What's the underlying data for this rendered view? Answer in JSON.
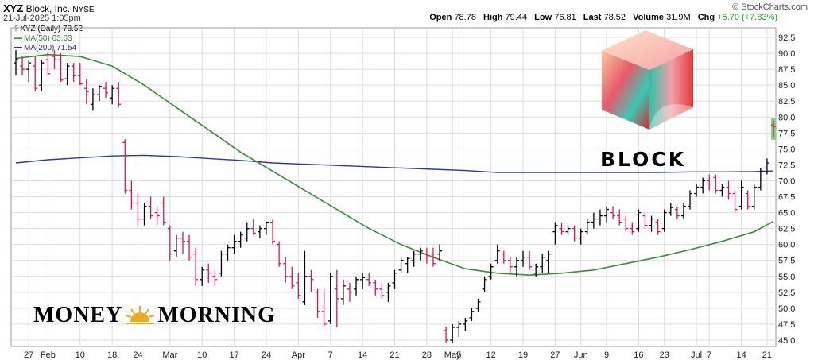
{
  "header": {
    "symbol": "XYZ",
    "company": "Block, Inc.",
    "exchange": "NYSE",
    "date": "21-Jul-2025 1:05pm",
    "open_label": "Open",
    "open": "78.78",
    "high_label": "High",
    "high": "79.44",
    "low_label": "Low",
    "low": "76.81",
    "last_label": "Last",
    "last": "78.52",
    "volume_label": "Volume",
    "volume": "31.9M",
    "chg_label": "Chg",
    "chg": "+5.70 (+7.83%)",
    "source": "© StockCharts.com"
  },
  "legend": {
    "price": "XYZ (Daily) 78.52",
    "ma50": "MA(50) 63.63",
    "ma200": "MA(200) 71.54"
  },
  "logos": {
    "money_morning_left": "MONEY",
    "money_morning_right": "MORNING",
    "block_wordmark": "BLOCK"
  },
  "colors": {
    "up": "#000000",
    "down": "#d4145a",
    "ma50": "#3a8a3a",
    "ma200": "#2b3a99",
    "last_marker": "#7fd37f",
    "grid": "#dddddd"
  },
  "chart_data": {
    "type": "ohlc",
    "title": "XYZ (Daily)",
    "ylim": [
      44,
      94
    ],
    "y_ticks": [
      "45.0",
      "47.5",
      "50.0",
      "52.5",
      "55.0",
      "57.5",
      "60.0",
      "62.5",
      "65.0",
      "67.5",
      "70.0",
      "72.5",
      "75.0",
      "77.5",
      "80.0",
      "82.5",
      "85.0",
      "87.5",
      "90.0",
      "92.5"
    ],
    "x_tick_labels": [
      {
        "i": 2,
        "label": "27"
      },
      {
        "i": 5,
        "label": "Feb"
      },
      {
        "i": 10,
        "label": "10"
      },
      {
        "i": 15,
        "label": "18"
      },
      {
        "i": 19,
        "label": "24"
      },
      {
        "i": 24,
        "label": "Mar"
      },
      {
        "i": 29,
        "label": "10"
      },
      {
        "i": 34,
        "label": "17"
      },
      {
        "i": 39,
        "label": "24"
      },
      {
        "i": 44,
        "label": "Apr"
      },
      {
        "i": 49,
        "label": "7"
      },
      {
        "i": 54,
        "label": "14"
      },
      {
        "i": 59,
        "label": "21"
      },
      {
        "i": 64,
        "label": "28"
      },
      {
        "i": 68,
        "label": "May"
      },
      {
        "i": 69,
        "label": "5"
      },
      {
        "i": 74,
        "label": "12"
      },
      {
        "i": 79,
        "label": "19"
      },
      {
        "i": 84,
        "label": "27"
      },
      {
        "i": 88,
        "label": "Jun"
      },
      {
        "i": 92,
        "label": "9"
      },
      {
        "i": 97,
        "label": "16"
      },
      {
        "i": 101,
        "label": "23"
      },
      {
        "i": 106,
        "label": "Jul"
      },
      {
        "i": 108,
        "label": "7"
      },
      {
        "i": 113,
        "label": "14"
      },
      {
        "i": 117,
        "label": "21"
      }
    ],
    "bars": [
      [
        88.5,
        90.5,
        86.5,
        89.0
      ],
      [
        88.0,
        89.5,
        86.5,
        87.5
      ],
      [
        87.5,
        89.0,
        85.5,
        88.5
      ],
      [
        88.0,
        89.5,
        84.0,
        84.5
      ],
      [
        85.0,
        89.0,
        84.0,
        88.5
      ],
      [
        89.0,
        90.2,
        86.5,
        86.8
      ],
      [
        89.5,
        90.5,
        87.5,
        89.0
      ],
      [
        89.0,
        90.0,
        85.5,
        85.8
      ],
      [
        86.0,
        88.5,
        85.0,
        88.0
      ],
      [
        88.0,
        88.5,
        85.5,
        86.5
      ],
      [
        86.5,
        88.5,
        85.0,
        85.2
      ],
      [
        84.5,
        86.0,
        82.0,
        84.0
      ],
      [
        82.0,
        84.5,
        81.0,
        83.5
      ],
      [
        83.5,
        85.0,
        82.5,
        84.8
      ],
      [
        84.5,
        85.5,
        83.0,
        83.8
      ],
      [
        83.0,
        85.0,
        82.0,
        84.5
      ],
      [
        84.5,
        85.5,
        81.5,
        82.0
      ],
      [
        76.0,
        76.5,
        68.0,
        68.5
      ],
      [
        68.5,
        70.0,
        65.5,
        66.5
      ],
      [
        66.5,
        68.0,
        63.0,
        64.0
      ],
      [
        64.0,
        66.5,
        63.0,
        66.0
      ],
      [
        66.0,
        67.5,
        64.0,
        64.5
      ],
      [
        65.0,
        66.0,
        63.0,
        64.5
      ],
      [
        66.5,
        67.5,
        63.0,
        63.5
      ],
      [
        62.5,
        63.0,
        57.5,
        58.5
      ],
      [
        59.0,
        61.5,
        58.0,
        61.0
      ],
      [
        61.0,
        62.0,
        58.5,
        60.5
      ],
      [
        60.5,
        61.5,
        57.5,
        58.0
      ],
      [
        58.5,
        59.5,
        53.5,
        54.5
      ],
      [
        54.5,
        56.5,
        53.5,
        56.0
      ],
      [
        56.0,
        57.0,
        54.0,
        55.5
      ],
      [
        55.0,
        56.0,
        53.5,
        54.5
      ],
      [
        55.5,
        59.0,
        55.0,
        58.5
      ],
      [
        58.5,
        60.0,
        57.5,
        59.5
      ],
      [
        59.5,
        61.5,
        58.5,
        60.5
      ],
      [
        60.5,
        62.0,
        59.5,
        61.5
      ],
      [
        61.0,
        63.5,
        60.5,
        62.5
      ],
      [
        62.5,
        64.0,
        61.5,
        61.8
      ],
      [
        62.0,
        63.0,
        61.0,
        62.5
      ],
      [
        62.5,
        63.5,
        61.5,
        63.5
      ],
      [
        63.5,
        64.0,
        60.0,
        60.5
      ],
      [
        60.0,
        60.5,
        56.5,
        57.0
      ],
      [
        57.0,
        58.0,
        54.0,
        55.0
      ],
      [
        55.0,
        56.5,
        53.0,
        53.5
      ],
      [
        54.0,
        55.5,
        51.5,
        52.0
      ],
      [
        51.0,
        59.0,
        50.5,
        55.0
      ],
      [
        55.0,
        56.0,
        52.5,
        54.5
      ],
      [
        52.5,
        53.0,
        48.5,
        49.5
      ],
      [
        49.5,
        53.0,
        47.0,
        47.5
      ],
      [
        48.0,
        55.5,
        47.5,
        55.0
      ],
      [
        53.0,
        56.0,
        47.0,
        51.5
      ],
      [
        51.5,
        54.5,
        50.5,
        53.5
      ],
      [
        53.0,
        54.0,
        51.0,
        52.5
      ],
      [
        53.0,
        55.0,
        52.0,
        54.5
      ],
      [
        54.5,
        55.5,
        53.0,
        54.8
      ],
      [
        54.5,
        55.5,
        53.5,
        54.0
      ],
      [
        54.0,
        54.5,
        52.0,
        53.0
      ],
      [
        53.0,
        54.0,
        51.5,
        52.0
      ],
      [
        52.5,
        54.0,
        51.0,
        53.5
      ],
      [
        54.0,
        56.0,
        53.0,
        55.5
      ],
      [
        56.0,
        58.0,
        55.5,
        57.5
      ],
      [
        57.0,
        58.0,
        55.5,
        57.8
      ],
      [
        57.5,
        59.0,
        56.5,
        58.5
      ],
      [
        58.5,
        59.5,
        57.5,
        59.0
      ],
      [
        58.5,
        59.5,
        57.0,
        58.0
      ],
      [
        58.5,
        59.5,
        56.5,
        57.0
      ],
      [
        58.5,
        60.0,
        57.5,
        59.0
      ],
      [
        46.5,
        47.0,
        44.5,
        45.0
      ],
      [
        45.0,
        47.5,
        44.5,
        47.0
      ],
      [
        47.0,
        48.0,
        45.5,
        47.5
      ],
      [
        47.5,
        48.5,
        46.5,
        48.0
      ],
      [
        48.5,
        50.0,
        48.0,
        49.5
      ],
      [
        50.0,
        51.5,
        49.5,
        51.0
      ],
      [
        53.0,
        55.0,
        52.5,
        54.5
      ],
      [
        55.0,
        57.0,
        54.5,
        56.5
      ],
      [
        57.5,
        60.0,
        57.0,
        59.0
      ],
      [
        58.5,
        59.0,
        57.0,
        57.5
      ],
      [
        57.5,
        58.0,
        55.5,
        56.5
      ],
      [
        56.5,
        58.0,
        55.0,
        57.5
      ],
      [
        57.5,
        59.0,
        56.5,
        58.0
      ],
      [
        58.0,
        59.0,
        56.0,
        56.5
      ],
      [
        55.5,
        57.0,
        55.0,
        56.5
      ],
      [
        56.5,
        58.5,
        55.5,
        58.0
      ],
      [
        57.5,
        59.0,
        55.5,
        58.5
      ],
      [
        62.0,
        63.5,
        60.0,
        63.0
      ],
      [
        62.5,
        63.5,
        61.5,
        62.0
      ],
      [
        62.0,
        63.0,
        61.5,
        62.5
      ],
      [
        62.5,
        63.0,
        60.5,
        61.0
      ],
      [
        61.0,
        62.5,
        60.0,
        62.0
      ],
      [
        62.0,
        64.0,
        61.5,
        63.5
      ],
      [
        63.5,
        65.0,
        62.5,
        64.0
      ],
      [
        64.0,
        65.5,
        63.0,
        64.5
      ],
      [
        64.5,
        66.0,
        63.5,
        65.5
      ],
      [
        65.0,
        66.0,
        64.0,
        64.5
      ],
      [
        64.5,
        65.5,
        63.0,
        63.5
      ],
      [
        64.0,
        64.5,
        62.0,
        62.5
      ],
      [
        62.5,
        63.5,
        61.5,
        62.0
      ],
      [
        62.5,
        65.5,
        62.0,
        65.0
      ],
      [
        64.5,
        65.0,
        62.5,
        63.0
      ],
      [
        63.0,
        64.5,
        62.0,
        64.0
      ],
      [
        63.5,
        64.0,
        61.5,
        62.0
      ],
      [
        62.5,
        65.5,
        62.0,
        65.0
      ],
      [
        65.0,
        66.5,
        64.5,
        65.8
      ],
      [
        65.5,
        66.0,
        64.0,
        64.5
      ],
      [
        64.5,
        66.5,
        64.0,
        66.0
      ],
      [
        66.0,
        68.5,
        65.5,
        68.0
      ],
      [
        68.0,
        69.5,
        67.5,
        69.0
      ],
      [
        69.0,
        70.5,
        68.0,
        70.0
      ],
      [
        70.0,
        71.0,
        68.5,
        69.5
      ],
      [
        70.5,
        71.0,
        68.0,
        68.5
      ],
      [
        68.5,
        69.5,
        67.5,
        69.0
      ],
      [
        69.0,
        70.0,
        67.0,
        68.0
      ],
      [
        68.0,
        68.5,
        65.0,
        65.5
      ],
      [
        66.0,
        70.0,
        65.5,
        69.0
      ],
      [
        68.0,
        68.5,
        65.5,
        66.0
      ],
      [
        66.0,
        69.5,
        65.5,
        69.0
      ],
      [
        69.0,
        72.0,
        68.5,
        71.5
      ],
      [
        72.0,
        73.5,
        71.0,
        72.8
      ],
      [
        78.78,
        79.44,
        76.81,
        78.52
      ]
    ],
    "ma50": [
      [
        0,
        89.2
      ],
      [
        5,
        89.8
      ],
      [
        10,
        89.5
      ],
      [
        15,
        88.0
      ],
      [
        20,
        85.0
      ],
      [
        25,
        81.5
      ],
      [
        30,
        78.0
      ],
      [
        35,
        74.5
      ],
      [
        40,
        71.5
      ],
      [
        45,
        68.5
      ],
      [
        50,
        65.5
      ],
      [
        55,
        62.5
      ],
      [
        60,
        60.0
      ],
      [
        65,
        58.0
      ],
      [
        70,
        56.2
      ],
      [
        75,
        55.5
      ],
      [
        80,
        55.2
      ],
      [
        85,
        55.5
      ],
      [
        90,
        56.0
      ],
      [
        95,
        57.0
      ],
      [
        100,
        58.0
      ],
      [
        105,
        59.2
      ],
      [
        110,
        60.5
      ],
      [
        115,
        62.0
      ],
      [
        118,
        63.63
      ]
    ],
    "ma200": [
      [
        0,
        72.8
      ],
      [
        5,
        73.3
      ],
      [
        10,
        73.6
      ],
      [
        15,
        73.9
      ],
      [
        20,
        74.0
      ],
      [
        25,
        73.8
      ],
      [
        30,
        73.5
      ],
      [
        35,
        73.2
      ],
      [
        40,
        72.8
      ],
      [
        45,
        72.6
      ],
      [
        50,
        72.4
      ],
      [
        55,
        72.2
      ],
      [
        60,
        72.0
      ],
      [
        65,
        71.8
      ],
      [
        70,
        71.6
      ],
      [
        75,
        71.3
      ],
      [
        80,
        71.3
      ],
      [
        85,
        71.3
      ],
      [
        90,
        71.3
      ],
      [
        95,
        71.3
      ],
      [
        100,
        71.3
      ],
      [
        105,
        71.4
      ],
      [
        110,
        71.4
      ],
      [
        115,
        71.45
      ],
      [
        118,
        71.54
      ]
    ]
  }
}
